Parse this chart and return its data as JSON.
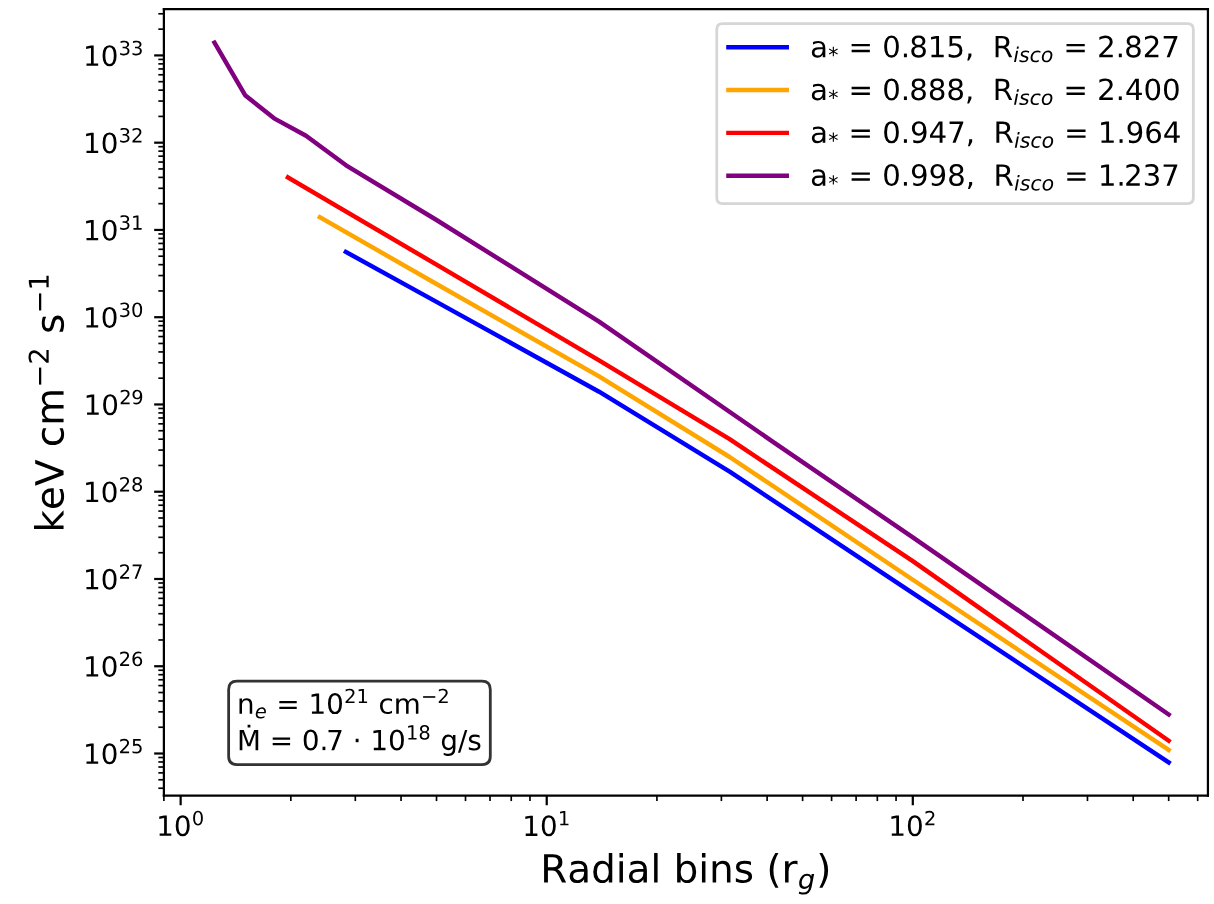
{
  "chart_data": {
    "type": "line",
    "xlabel": "Radial bins (r$_{g}$)",
    "ylabel": "keV cm$^{−2}$ s$^{−1}$",
    "log": "xy",
    "grid": false,
    "legend": "top right",
    "marker": "none",
    "line_style": "solid",
    "xlim": [
      0.9,
      640
    ],
    "ylim": [
      3.3e+24,
      3.4e+33
    ],
    "xticks": [
      {
        "value": 1,
        "label": "10$^{0}$"
      },
      {
        "value": 10,
        "label": "10$^{1}$"
      },
      {
        "value": 100,
        "label": "10$^{2}$"
      }
    ],
    "yticks": [
      {
        "value": 1e+25,
        "label": "10$^{25}$"
      },
      {
        "value": 1e+26,
        "label": "10$^{26}$"
      },
      {
        "value": 1e+27,
        "label": "10$^{27}$"
      },
      {
        "value": 1e+28,
        "label": "10$^{28}$"
      },
      {
        "value": 1e+29,
        "label": "10$^{29}$"
      },
      {
        "value": 1e+30,
        "label": "10$^{30}$"
      },
      {
        "value": 1e+31,
        "label": "10$^{31}$"
      },
      {
        "value": 1e+32,
        "label": "10$^{32}$"
      },
      {
        "value": 1e+33,
        "label": "10$^{33}$"
      }
    ],
    "series": [
      {
        "name": "a$_{*}$ = 0.815,  R$_{isco}$ = 2.827",
        "color": "#0000ff",
        "x": [
          2.827,
          5,
          13.9,
          31.6,
          100,
          500
        ],
        "values": [
          5.6e+30,
          1.5e+30,
          1.4e+29,
          1.7e+28,
          6.9e+26,
          7.9e+24
        ]
      },
      {
        "name": "a$_{*}$ = 0.888,  R$_{isco}$ = 2.400",
        "color": "#ffa500",
        "x": [
          2.4,
          5,
          13.9,
          31.6,
          100,
          500
        ],
        "values": [
          1.4e+31,
          2.4e+30,
          2.1e+29,
          2.5e+28,
          9.8e+26,
          1.1e+25
        ]
      },
      {
        "name": "a$_{*}$ = 0.947,  R$_{isco}$ = 1.964",
        "color": "#ff0000",
        "x": [
          1.964,
          5,
          13.9,
          31.6,
          100,
          500
        ],
        "values": [
          4e+31,
          4e+30,
          3.2e+29,
          4e+28,
          1.6e+27,
          1.4e+25
        ]
      },
      {
        "name": "a$_{*}$ = 0.998,  R$_{isco}$ = 1.237",
        "color": "#800080",
        "x": [
          1.237,
          1.5,
          1.8,
          2.2,
          2.83,
          5,
          13.9,
          41.6,
          100,
          500
        ],
        "values": [
          1.4e+33,
          3.5e+32,
          1.9e+32,
          1.2e+32,
          5.5e+31,
          1.3e+31,
          8.9e+29,
          3.7e+28,
          3e+27,
          2.8e+25
        ]
      }
    ],
    "annotations": [
      "n$_{e}$ = 10$^{21}$ cm$^{−2}$",
      "Ṁ = 0.7 · 10$^{18}$ g/s"
    ]
  }
}
